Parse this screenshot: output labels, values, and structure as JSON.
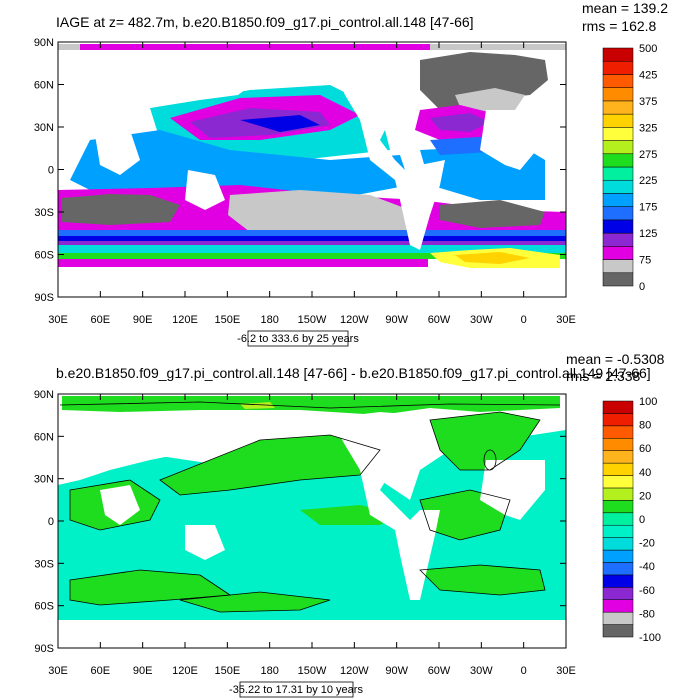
{
  "panels": [
    {
      "title": "IAGE at z= 482.7m, b.e20.B1850.f09_g17.pi_control.all.148 [47-66]",
      "stats": {
        "mean": "mean = 139.2",
        "rms": "rms = 162.8"
      },
      "lat_ticks": [
        "90N",
        "60N",
        "30N",
        "0",
        "30S",
        "60S",
        "90S"
      ],
      "lon_ticks": [
        "30E",
        "60E",
        "90E",
        "120E",
        "150E",
        "180",
        "150W",
        "120W",
        "90W",
        "60W",
        "30W",
        "0",
        "30E"
      ],
      "range_text": "-6.2 to 333.6 by 25 years",
      "colorbar": {
        "colors": [
          "#666666",
          "#c8c8c8",
          "#e100e1",
          "#8c28d2",
          "#0000e6",
          "#1e6eff",
          "#00a0ff",
          "#00dcdc",
          "#00f0a0",
          "#1edc1e",
          "#b4f01e",
          "#ffff3c",
          "#ffd200",
          "#ffb41e",
          "#ff8c00",
          "#ff5a00",
          "#f01e00",
          "#c80000"
        ],
        "labels": [
          "500",
          "425",
          "375",
          "325",
          "275",
          "225",
          "175",
          "125",
          "75",
          "0"
        ]
      }
    },
    {
      "title": "b.e20.B1850.f09_g17.pi_control.all.148 [47-66] - b.e20.B1850.f09_g17.pi_control.all.149 [47-66]",
      "stats": {
        "mean": "mean = -0.5308",
        "rms": "rms = 2.338"
      },
      "lat_ticks": [
        "90N",
        "60N",
        "30N",
        "0",
        "30S",
        "60S",
        "90S"
      ],
      "lon_ticks": [
        "30E",
        "60E",
        "90E",
        "120E",
        "150E",
        "180",
        "150W",
        "120W",
        "90W",
        "60W",
        "30W",
        "0",
        "30E"
      ],
      "range_text": "-35.22 to 17.31 by 10 years",
      "colorbar": {
        "colors": [
          "#666666",
          "#c8c8c8",
          "#e100e1",
          "#8c28d2",
          "#0000e6",
          "#1e6eff",
          "#00a0ff",
          "#00dcdc",
          "#00f0c8",
          "#00f0a0",
          "#1edc1e",
          "#b4f01e",
          "#ffff3c",
          "#ffd200",
          "#ffb41e",
          "#ff8c00",
          "#ff5a00",
          "#f01e00",
          "#c80000"
        ],
        "labels": [
          "100",
          "80",
          "60",
          "40",
          "20",
          "0",
          "-20",
          "-40",
          "-60",
          "-80",
          "-100"
        ]
      }
    }
  ]
}
